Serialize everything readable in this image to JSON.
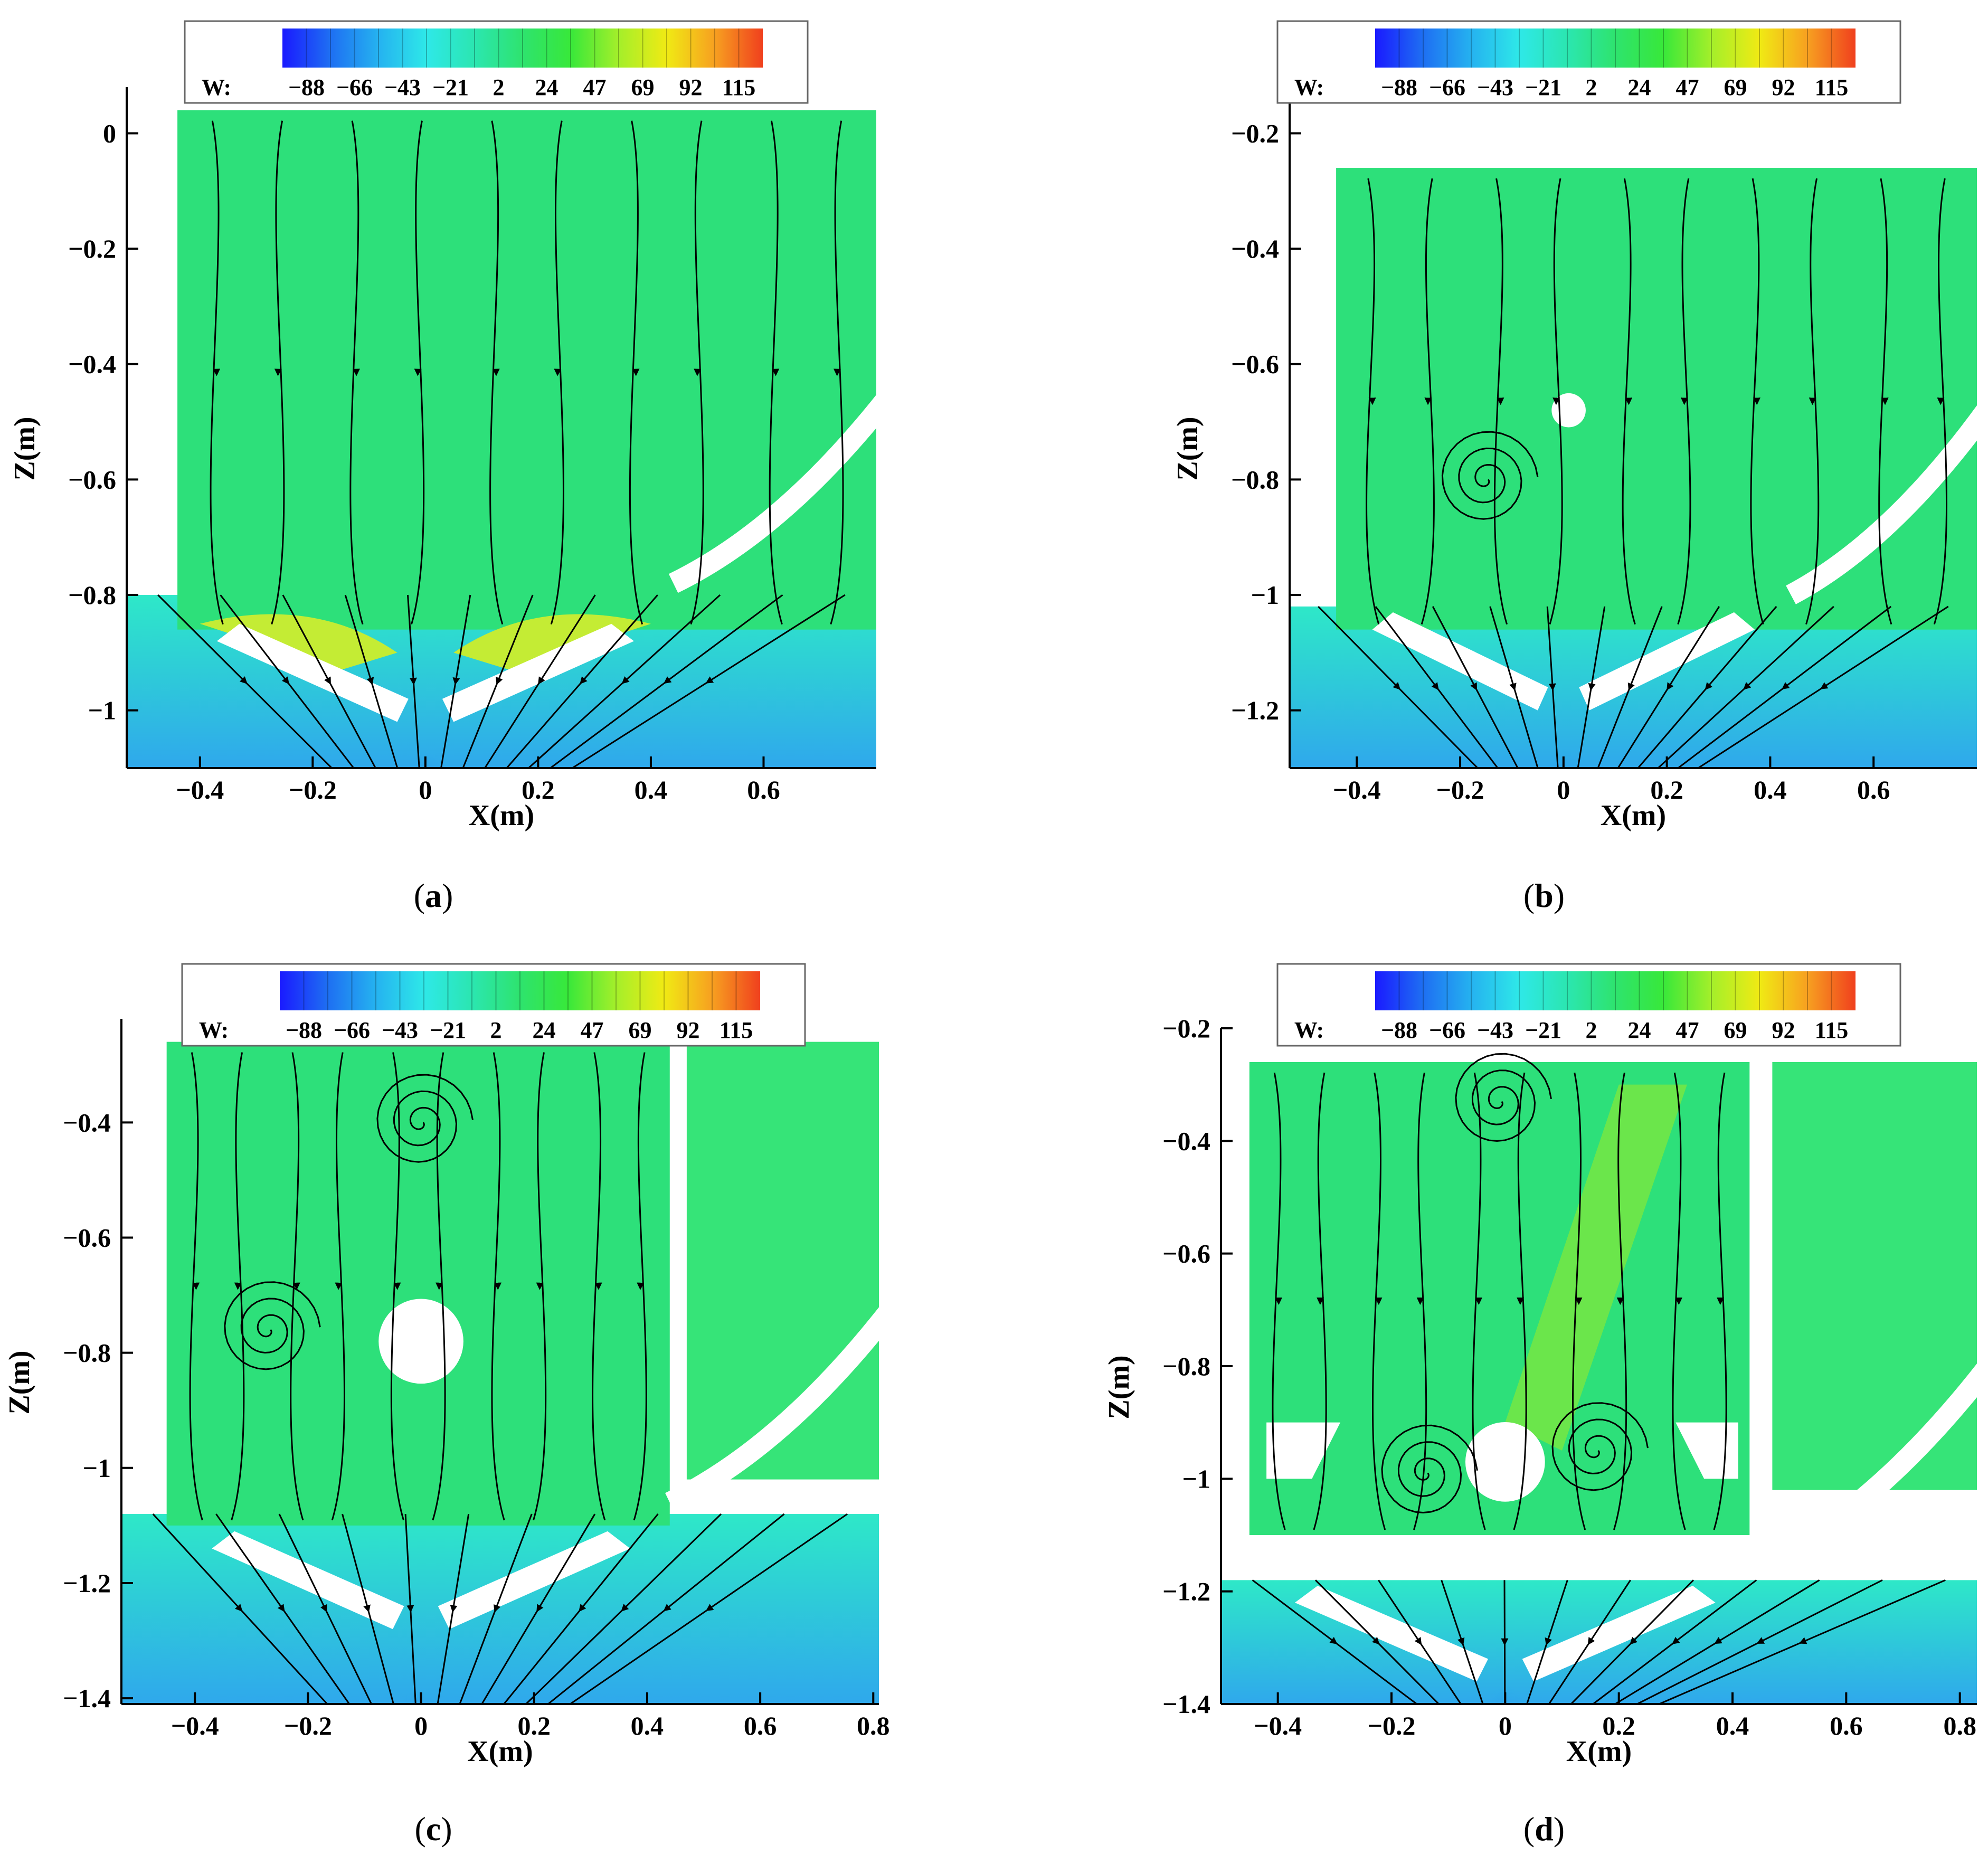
{
  "figure": {
    "captions": [
      {
        "open": "(",
        "letter": "a",
        "close": ")"
      },
      {
        "open": "(",
        "letter": "b",
        "close": ")"
      },
      {
        "open": "(",
        "letter": "c",
        "close": ")"
      },
      {
        "open": "(",
        "letter": "d",
        "close": ")"
      }
    ]
  },
  "colorbar": {
    "label": "W:",
    "ticks": [
      "−88",
      "−66",
      "−43",
      "−21",
      "2",
      "24",
      "47",
      "69",
      "92",
      "115"
    ],
    "colors": [
      "#1a1aff",
      "#1e6ff2",
      "#25b2f0",
      "#2ee8e8",
      "#2be6b0",
      "#2ee36e",
      "#38e83a",
      "#a4ef2a",
      "#f0ea14",
      "#f7a020",
      "#f0401e"
    ]
  },
  "chart_data": [
    {
      "type": "heatmap",
      "panel": "a",
      "xlabel": "X(m)",
      "ylabel": "Z(m)",
      "xlim": [
        -0.53,
        0.8
      ],
      "ylim": [
        -1.1,
        0.08
      ],
      "xticks": [
        -0.4,
        -0.2,
        0,
        0.2,
        0.4,
        0.6
      ],
      "yticks": [
        0,
        -0.2,
        -0.4,
        -0.6,
        -0.8,
        -1
      ],
      "xticklabels": [
        "−0.4",
        "−0.2",
        "0",
        "0.2",
        "0.4",
        "0.6"
      ],
      "yticklabels": [
        "0",
        "−0.2",
        "−0.4",
        "−0.6",
        "−0.8",
        "−1"
      ],
      "features": {
        "cylinder": false,
        "vortices": [],
        "fields": [
          "interior-green",
          "channel-blue-below",
          "yellow-zones-near-vanes"
        ]
      }
    },
    {
      "type": "heatmap",
      "panel": "b",
      "xlabel": "X(m)",
      "ylabel": "Z(m)",
      "xlim": [
        -0.53,
        0.8
      ],
      "ylim": [
        -1.3,
        -0.12
      ],
      "xticks": [
        -0.4,
        -0.2,
        0,
        0.2,
        0.4,
        0.6
      ],
      "yticks": [
        -0.2,
        -0.4,
        -0.6,
        -0.8,
        -1,
        -1.2
      ],
      "xticklabels": [
        "−0.4",
        "−0.2",
        "0",
        "0.2",
        "0.4",
        "0.6"
      ],
      "yticklabels": [
        "−0.2",
        "−0.4",
        "−0.6",
        "−0.8",
        "−1",
        "−1.2"
      ],
      "features": {
        "cylinder": true,
        "cylinder_center": [
          0.01,
          -0.68
        ],
        "vortices": [
          [
            -0.15,
            -0.8
          ]
        ]
      }
    },
    {
      "type": "heatmap",
      "panel": "c",
      "xlabel": "X(m)",
      "ylabel": "Z(m)",
      "xlim": [
        -0.53,
        0.81
      ],
      "ylim": [
        -1.41,
        -0.22
      ],
      "xticks": [
        -0.4,
        -0.2,
        0,
        0.2,
        0.4,
        0.6,
        0.8
      ],
      "yticks": [
        -0.4,
        -0.6,
        -0.8,
        -1,
        -1.2,
        -1.4
      ],
      "xticklabels": [
        "−0.4",
        "−0.2",
        "0",
        "0.2",
        "0.4",
        "0.6",
        "0.8"
      ],
      "yticklabels": [
        "−0.4",
        "−0.6",
        "−0.8",
        "−1",
        "−1.2",
        "−1.4"
      ],
      "features": {
        "cylinder": true,
        "cylinder_center": [
          0,
          -0.78
        ],
        "vortices": [
          [
            -0.27,
            -0.76
          ],
          [
            0,
            -0.4
          ]
        ]
      }
    },
    {
      "type": "heatmap",
      "panel": "d",
      "xlabel": "X(m)",
      "ylabel": "Z(m)",
      "xlim": [
        -0.5,
        0.83
      ],
      "ylim": [
        -1.4,
        -0.2
      ],
      "xticks": [
        -0.4,
        -0.2,
        0,
        0.2,
        0.4,
        0.6,
        0.8
      ],
      "yticks": [
        -0.2,
        -0.4,
        -0.6,
        -0.8,
        -1,
        -1.2,
        -1.4
      ],
      "xticklabels": [
        "−0.4",
        "−0.2",
        "0",
        "0.2",
        "0.4",
        "0.6",
        "0.8"
      ],
      "yticklabels": [
        "−0.2",
        "−0.4",
        "−0.6",
        "−0.8",
        "−1",
        "−1.2",
        "−1.4"
      ],
      "features": {
        "cylinder": true,
        "cylinder_center": [
          0,
          -0.97
        ],
        "vortices": [
          [
            -0.01,
            -0.33
          ],
          [
            0.16,
            -0.95
          ],
          [
            -0.14,
            -0.99
          ]
        ]
      }
    }
  ]
}
